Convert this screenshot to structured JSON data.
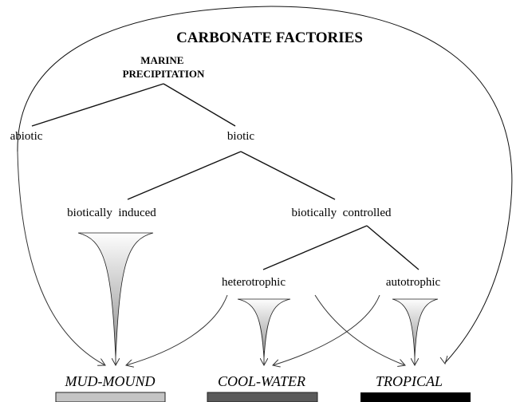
{
  "title": "CARBONATE FACTORIES",
  "root": {
    "lines": [
      "MARINE",
      "PRECIPITATION"
    ]
  },
  "nodes": [
    {
      "id": "abiotic",
      "label": "abiotic"
    },
    {
      "id": "biotic",
      "label": "biotic"
    },
    {
      "id": "induced",
      "label": "biotically  induced"
    },
    {
      "id": "controlled",
      "label": "biotically  controlled"
    },
    {
      "id": "heterotrophic",
      "label": "heterotrophic"
    },
    {
      "id": "autotrophic",
      "label": "autotrophic"
    }
  ],
  "factories": [
    {
      "label": "MUD-MOUND"
    },
    {
      "label": "COOL-WATER"
    },
    {
      "label": "TROPICAL"
    }
  ]
}
